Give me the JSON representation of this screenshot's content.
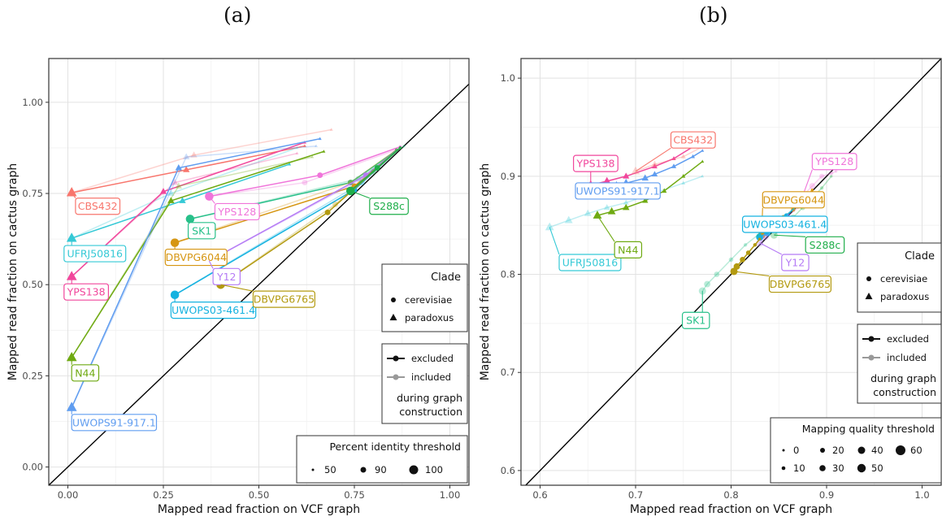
{
  "figure": {
    "panel_a_title": "(a)",
    "panel_b_title": "(b)"
  },
  "chart_data": [
    {
      "type": "scatter",
      "panel": "a",
      "title": "(a)",
      "xlabel": "Mapped read fraction on VCF graph",
      "ylabel": "Mapped read fraction on cactus graph",
      "xlim": [
        -0.05,
        1.05
      ],
      "ylim": [
        -0.05,
        1.12
      ],
      "xticks": [
        0.0,
        0.25,
        0.5,
        0.75,
        1.0
      ],
      "xtick_labels": [
        "0.00",
        "0.25",
        "0.50",
        "0.75",
        "1.00"
      ],
      "yticks": [
        0.0,
        0.25,
        0.5,
        0.75,
        1.0
      ],
      "ytick_labels": [
        "0.00",
        "0.25",
        "0.50",
        "0.75",
        "1.00"
      ],
      "grid": true,
      "diagonal": "y = x",
      "legend_clade": {
        "title": "Clade",
        "entries": [
          "cerevisiae",
          "paradoxus"
        ]
      },
      "legend_construction": {
        "entries": [
          "excluded",
          "included"
        ],
        "caption": [
          "during graph",
          "construction"
        ]
      },
      "legend_size": {
        "title": "Percent identity threshold",
        "entries": [
          "50",
          "90",
          "100"
        ]
      },
      "series": [
        {
          "name": "CBS432",
          "clade": "paradoxus",
          "color": "#F8766D",
          "label_at": [
            0.02,
            0.715
          ],
          "excluded": [
            [
              0.01,
              0.752
            ],
            [
              0.31,
              0.815
            ],
            [
              0.62,
              0.88
            ]
          ],
          "included": [
            [
              0.01,
              0.752
            ],
            [
              0.33,
              0.855
            ],
            [
              0.69,
              0.925
            ]
          ]
        },
        {
          "name": "UFRJ50816",
          "clade": "paradoxus",
          "color": "#35C9D6",
          "label_at": [
            -0.01,
            0.585
          ],
          "excluded": [
            [
              0.01,
              0.627
            ],
            [
              0.3,
              0.73
            ],
            [
              0.58,
              0.83
            ]
          ],
          "included": [
            [
              0.01,
              0.627
            ],
            [
              0.27,
              0.75
            ],
            [
              0.6,
              0.875
            ]
          ]
        },
        {
          "name": "YPS138",
          "clade": "paradoxus",
          "color": "#F1479C",
          "label_at": [
            -0.01,
            0.48
          ],
          "excluded": [
            [
              0.01,
              0.522
            ],
            [
              0.25,
              0.755
            ],
            [
              0.62,
              0.89
            ]
          ],
          "included": [
            [
              0.01,
              0.522
            ],
            [
              0.28,
              0.78
            ],
            [
              0.6,
              0.86
            ]
          ]
        },
        {
          "name": "N44",
          "clade": "paradoxus",
          "color": "#6FAA12",
          "label_at": [
            0.01,
            0.258
          ],
          "excluded": [
            [
              0.01,
              0.3
            ],
            [
              0.27,
              0.73
            ],
            [
              0.67,
              0.865
            ]
          ],
          "included": [
            [
              0.01,
              0.3
            ],
            [
              0.29,
              0.77
            ],
            [
              0.64,
              0.85
            ]
          ]
        },
        {
          "name": "UWOPS91-917.1",
          "clade": "paradoxus",
          "color": "#609DF0",
          "label_at": [
            0.01,
            0.122
          ],
          "excluded": [
            [
              0.01,
              0.163
            ],
            [
              0.29,
              0.82
            ],
            [
              0.66,
              0.9
            ]
          ],
          "included": [
            [
              0.01,
              0.163
            ],
            [
              0.31,
              0.85
            ],
            [
              0.65,
              0.88
            ]
          ]
        },
        {
          "name": "YPS128",
          "clade": "cerevisiae",
          "color": "#F075DA",
          "label_at": [
            0.385,
            0.7
          ],
          "excluded": [
            [
              0.37,
              0.742
            ],
            [
              0.66,
              0.8
            ],
            [
              0.87,
              0.878
            ]
          ],
          "included": [
            [
              0.37,
              0.742
            ],
            [
              0.62,
              0.78
            ],
            [
              0.86,
              0.87
            ]
          ]
        },
        {
          "name": "SK1",
          "clade": "cerevisiae",
          "color": "#28C08A",
          "label_at": [
            0.315,
            0.648
          ],
          "excluded": [
            [
              0.32,
              0.68
            ],
            [
              0.74,
              0.78
            ],
            [
              0.87,
              0.875
            ]
          ],
          "included": [
            [
              0.32,
              0.68
            ],
            [
              0.76,
              0.79
            ],
            [
              0.88,
              0.88
            ]
          ]
        },
        {
          "name": "DBVPG6044",
          "clade": "cerevisiae",
          "color": "#D69612",
          "label_at": [
            0.255,
            0.575
          ],
          "excluded": [
            [
              0.28,
              0.615
            ],
            [
              0.75,
              0.77
            ],
            [
              0.87,
              0.875
            ]
          ],
          "included": [
            [
              0.28,
              0.615
            ],
            [
              0.74,
              0.78
            ],
            [
              0.86,
              0.87
            ]
          ]
        },
        {
          "name": "Y12",
          "clade": "cerevisiae",
          "color": "#B57BF5",
          "label_at": [
            0.38,
            0.522
          ],
          "excluded": [
            [
              0.37,
              0.565
            ],
            [
              0.78,
              0.8
            ],
            [
              0.87,
              0.875
            ]
          ],
          "included": [
            [
              0.37,
              0.565
            ],
            [
              0.77,
              0.79
            ],
            [
              0.86,
              0.87
            ]
          ]
        },
        {
          "name": "UWOPS03-461.4",
          "clade": "cerevisiae",
          "color": "#14B2E0",
          "label_at": [
            0.27,
            0.43
          ],
          "excluded": [
            [
              0.28,
              0.472
            ],
            [
              0.75,
              0.76
            ],
            [
              0.87,
              0.875
            ]
          ],
          "included": [
            [
              0.28,
              0.472
            ],
            [
              0.77,
              0.78
            ],
            [
              0.86,
              0.87
            ]
          ]
        },
        {
          "name": "DBVPG6765",
          "clade": "cerevisiae",
          "color": "#B39A10",
          "label_at": [
            0.485,
            0.46
          ],
          "excluded": [
            [
              0.4,
              0.5
            ],
            [
              0.68,
              0.698
            ],
            [
              0.87,
              0.875
            ]
          ],
          "included": [
            [
              0.4,
              0.5
            ],
            [
              0.7,
              0.72
            ],
            [
              0.86,
              0.87
            ]
          ]
        },
        {
          "name": "S288c",
          "clade": "cerevisiae",
          "color": "#1FAE4A",
          "label_at": [
            0.79,
            0.715
          ],
          "excluded": [
            [
              0.74,
              0.757
            ],
            [
              0.81,
              0.82
            ],
            [
              0.87,
              0.875
            ]
          ],
          "included": [
            [
              0.74,
              0.757
            ],
            [
              0.8,
              0.81
            ],
            [
              0.86,
              0.87
            ]
          ]
        }
      ]
    },
    {
      "type": "scatter",
      "panel": "b",
      "title": "(b)",
      "xlabel": "Mapped read fraction on VCF graph",
      "ylabel": "Mapped read fraction on cactus graph",
      "xlim": [
        0.58,
        1.02
      ],
      "ylim": [
        0.585,
        1.02
      ],
      "xticks": [
        0.6,
        0.7,
        0.8,
        0.9,
        1.0
      ],
      "xtick_labels": [
        "0.6",
        "0.7",
        "0.8",
        "0.9",
        "1.0"
      ],
      "yticks": [
        0.6,
        0.7,
        0.8,
        0.9,
        1.0
      ],
      "ytick_labels": [
        "0.6",
        "0.7",
        "0.8",
        "0.9",
        "1.0"
      ],
      "grid": true,
      "diagonal": "y = x",
      "legend_clade": {
        "title": "Clade",
        "entries": [
          "cerevisiae",
          "paradoxus"
        ]
      },
      "legend_construction": {
        "entries": [
          "excluded",
          "included"
        ],
        "caption": [
          "during graph",
          "construction"
        ]
      },
      "legend_size": {
        "title": "Mapping quality threshold",
        "entries": [
          "0",
          "20",
          "40",
          "60",
          "10",
          "30",
          "50"
        ]
      },
      "series": [
        {
          "name": "YPS138",
          "clade": "paradoxus",
          "color": "#F1479C",
          "label_at": [
            0.635,
            0.913
          ],
          "excluded": [
            [
              0.653,
              0.891
            ],
            [
              0.67,
              0.895
            ],
            [
              0.69,
              0.9
            ],
            [
              0.72,
              0.91
            ],
            [
              0.74,
              0.918
            ],
            [
              0.76,
              0.93
            ]
          ],
          "included": []
        },
        {
          "name": "CBS432",
          "clade": "paradoxus",
          "color": "#F8766D",
          "label_at": [
            0.737,
            0.937
          ],
          "excluded": [],
          "included": [
            [
              0.7,
              0.905
            ],
            [
              0.72,
              0.912
            ],
            [
              0.75,
              0.92
            ],
            [
              0.78,
              0.935
            ]
          ]
        },
        {
          "name": "UWOPS91-917.1",
          "clade": "paradoxus",
          "color": "#609DF0",
          "label_at": [
            0.637,
            0.885
          ],
          "excluded": [
            [
              0.68,
              0.89
            ],
            [
              0.69,
              0.893
            ],
            [
              0.71,
              0.898
            ],
            [
              0.72,
              0.902
            ],
            [
              0.74,
              0.91
            ],
            [
              0.76,
              0.92
            ],
            [
              0.77,
              0.926
            ]
          ],
          "included": []
        },
        {
          "name": "UFRJ50816",
          "clade": "paradoxus",
          "color": "#35C9D6",
          "label_at": [
            0.62,
            0.812
          ],
          "excluded": [],
          "included": [
            [
              0.61,
              0.848
            ],
            [
              0.63,
              0.855
            ],
            [
              0.65,
              0.862
            ],
            [
              0.67,
              0.868
            ],
            [
              0.69,
              0.873
            ],
            [
              0.72,
              0.883
            ],
            [
              0.75,
              0.893
            ],
            [
              0.77,
              0.9
            ]
          ]
        },
        {
          "name": "N44",
          "clade": "paradoxus",
          "color": "#6FAA12",
          "label_at": [
            0.678,
            0.825
          ],
          "excluded": [
            [
              0.66,
              0.86
            ],
            [
              0.675,
              0.864
            ],
            [
              0.69,
              0.868
            ],
            [
              0.71,
              0.875
            ],
            [
              0.73,
              0.885
            ],
            [
              0.75,
              0.9
            ],
            [
              0.77,
              0.915
            ]
          ],
          "included": []
        },
        {
          "name": "YPS128",
          "clade": "cerevisiae",
          "color": "#F075DA",
          "label_at": [
            0.885,
            0.915
          ],
          "excluded": [],
          "included": [
            [
              0.875,
              0.88
            ],
            [
              0.885,
              0.89
            ],
            [
              0.895,
              0.9
            ],
            [
              0.905,
              0.903
            ],
            [
              0.91,
              0.905
            ]
          ]
        },
        {
          "name": "DBVPG6044",
          "clade": "cerevisiae",
          "color": "#D69612",
          "label_at": [
            0.833,
            0.876
          ],
          "excluded": [
            [
              0.832,
              0.84
            ],
            [
              0.838,
              0.845
            ],
            [
              0.845,
              0.85
            ],
            [
              0.855,
              0.858
            ],
            [
              0.865,
              0.866
            ],
            [
              0.875,
              0.875
            ],
            [
              0.885,
              0.886
            ]
          ],
          "included": []
        },
        {
          "name": "UWOPS03-461.4",
          "clade": "cerevisiae",
          "color": "#14B2E0",
          "label_at": [
            0.812,
            0.851
          ],
          "excluded": [
            [
              0.83,
              0.838
            ],
            [
              0.838,
              0.842
            ],
            [
              0.848,
              0.851
            ],
            [
              0.858,
              0.86
            ],
            [
              0.87,
              0.871
            ],
            [
              0.88,
              0.882
            ]
          ],
          "included": []
        },
        {
          "name": "S288c",
          "clade": "cerevisiae",
          "color": "#1FAE4A",
          "label_at": [
            0.878,
            0.83
          ],
          "excluded": [],
          "included": [
            [
              0.845,
              0.84
            ],
            [
              0.855,
              0.848
            ],
            [
              0.865,
              0.858
            ],
            [
              0.875,
              0.868
            ],
            [
              0.885,
              0.878
            ],
            [
              0.895,
              0.888
            ],
            [
              0.905,
              0.9
            ]
          ]
        },
        {
          "name": "Y12",
          "clade": "cerevisiae",
          "color": "#B57BF5",
          "label_at": [
            0.853,
            0.812
          ],
          "excluded": [],
          "included": [
            [
              0.83,
              0.832
            ],
            [
              0.836,
              0.838
            ],
            [
              0.844,
              0.846
            ],
            [
              0.852,
              0.854
            ],
            [
              0.86,
              0.86
            ],
            [
              0.87,
              0.868
            ]
          ]
        },
        {
          "name": "DBVPG6765",
          "clade": "cerevisiae",
          "color": "#B39A10",
          "label_at": [
            0.84,
            0.79
          ],
          "excluded": [
            [
              0.803,
              0.803
            ],
            [
              0.806,
              0.808
            ],
            [
              0.812,
              0.815
            ],
            [
              0.818,
              0.822
            ],
            [
              0.825,
              0.83
            ],
            [
              0.83,
              0.836
            ]
          ],
          "included": []
        },
        {
          "name": "SK1",
          "clade": "cerevisiae",
          "color": "#28C08A",
          "label_at": [
            0.749,
            0.753
          ],
          "excluded": [],
          "included": [
            [
              0.77,
              0.783
            ],
            [
              0.775,
              0.79
            ],
            [
              0.785,
              0.8
            ],
            [
              0.8,
              0.815
            ],
            [
              0.815,
              0.83
            ],
            [
              0.828,
              0.84
            ]
          ]
        }
      ]
    }
  ]
}
